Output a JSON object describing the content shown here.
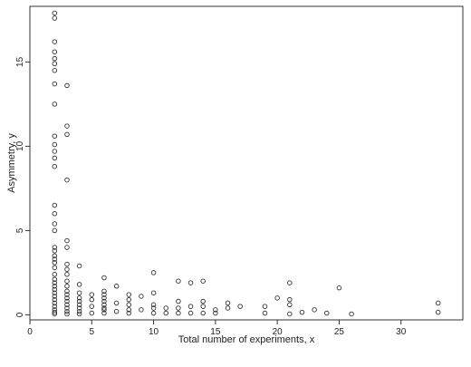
{
  "chart_data": {
    "type": "scatter",
    "title": "",
    "xlabel": "Total number of experiments, x",
    "ylabel": "Asymmetry, y",
    "xlim": [
      0,
      35
    ],
    "ylim": [
      -0.3,
      18.3
    ],
    "xticks": [
      0,
      5,
      10,
      15,
      20,
      25,
      30
    ],
    "yticks": [
      0,
      5,
      10,
      15
    ],
    "grid": false,
    "legend": "none",
    "marker": "open-circle",
    "marker_color": "#333333",
    "series": [
      {
        "points": [
          [
            2,
            17.9
          ],
          [
            2,
            17.6
          ],
          [
            2,
            16.2
          ],
          [
            2,
            15.6
          ],
          [
            2,
            15.2
          ],
          [
            2,
            14.9
          ],
          [
            2,
            14.5
          ],
          [
            2,
            13.7
          ],
          [
            2,
            12.5
          ],
          [
            2,
            10.6
          ],
          [
            2,
            10.1
          ],
          [
            2,
            9.7
          ],
          [
            2,
            9.3
          ],
          [
            2,
            8.8
          ],
          [
            2,
            6.5
          ],
          [
            2,
            6.0
          ],
          [
            2,
            5.4
          ],
          [
            2,
            5.0
          ],
          [
            2,
            4.0
          ],
          [
            2,
            3.8
          ],
          [
            2,
            3.5
          ],
          [
            2,
            3.3
          ],
          [
            2,
            3.1
          ],
          [
            2,
            2.8
          ],
          [
            2,
            2.4
          ],
          [
            2,
            2.1
          ],
          [
            2,
            1.9
          ],
          [
            2,
            1.7
          ],
          [
            2,
            1.5
          ],
          [
            2,
            1.3
          ],
          [
            2,
            1.1
          ],
          [
            2,
            0.9
          ],
          [
            2,
            0.7
          ],
          [
            2,
            0.5
          ],
          [
            2,
            0.3
          ],
          [
            2,
            0.15
          ],
          [
            2,
            0.05
          ],
          [
            3,
            13.6
          ],
          [
            3,
            11.2
          ],
          [
            3,
            10.7
          ],
          [
            3,
            8.0
          ],
          [
            3,
            4.4
          ],
          [
            3,
            4.0
          ],
          [
            3,
            3.0
          ],
          [
            3,
            2.7
          ],
          [
            3,
            2.4
          ],
          [
            3,
            2.0
          ],
          [
            3,
            1.7
          ],
          [
            3,
            1.4
          ],
          [
            3,
            1.2
          ],
          [
            3,
            1.0
          ],
          [
            3,
            0.8
          ],
          [
            3,
            0.6
          ],
          [
            3,
            0.4
          ],
          [
            3,
            0.2
          ],
          [
            3,
            0.05
          ],
          [
            4,
            2.9
          ],
          [
            4,
            1.8
          ],
          [
            4,
            1.3
          ],
          [
            4,
            1.0
          ],
          [
            4,
            0.8
          ],
          [
            4,
            0.6
          ],
          [
            4,
            0.4
          ],
          [
            4,
            0.2
          ],
          [
            4,
            0.05
          ],
          [
            5,
            1.2
          ],
          [
            5,
            0.9
          ],
          [
            5,
            0.5
          ],
          [
            5,
            0.1
          ],
          [
            6,
            2.2
          ],
          [
            6,
            1.4
          ],
          [
            6,
            1.2
          ],
          [
            6,
            1.0
          ],
          [
            6,
            0.8
          ],
          [
            6,
            0.6
          ],
          [
            6,
            0.4
          ],
          [
            6,
            0.3
          ],
          [
            6,
            0.1
          ],
          [
            7,
            1.7
          ],
          [
            7,
            0.7
          ],
          [
            7,
            0.2
          ],
          [
            8,
            1.2
          ],
          [
            8,
            0.9
          ],
          [
            8,
            0.6
          ],
          [
            8,
            0.3
          ],
          [
            8,
            0.1
          ],
          [
            9,
            1.1
          ],
          [
            9,
            0.3
          ],
          [
            10,
            2.5
          ],
          [
            10,
            1.3
          ],
          [
            10,
            0.6
          ],
          [
            10,
            0.4
          ],
          [
            10,
            0.1
          ],
          [
            11,
            0.4
          ],
          [
            11,
            0.1
          ],
          [
            12,
            2.0
          ],
          [
            12,
            0.8
          ],
          [
            12,
            0.4
          ],
          [
            12,
            0.1
          ],
          [
            13,
            1.9
          ],
          [
            13,
            0.5
          ],
          [
            13,
            0.1
          ],
          [
            14,
            2.0
          ],
          [
            14,
            0.8
          ],
          [
            14,
            0.5
          ],
          [
            14,
            0.1
          ],
          [
            15,
            0.3
          ],
          [
            15,
            0.1
          ],
          [
            16,
            0.7
          ],
          [
            16,
            0.4
          ],
          [
            17,
            0.5
          ],
          [
            19,
            0.5
          ],
          [
            19,
            0.1
          ],
          [
            20,
            1.0
          ],
          [
            21,
            1.9
          ],
          [
            21,
            0.9
          ],
          [
            21,
            0.6
          ],
          [
            21,
            0.05
          ],
          [
            22,
            0.15
          ],
          [
            23,
            0.3
          ],
          [
            24,
            0.1
          ],
          [
            25,
            1.6
          ],
          [
            26,
            0.05
          ],
          [
            33,
            0.7
          ],
          [
            33,
            0.15
          ]
        ]
      }
    ]
  }
}
